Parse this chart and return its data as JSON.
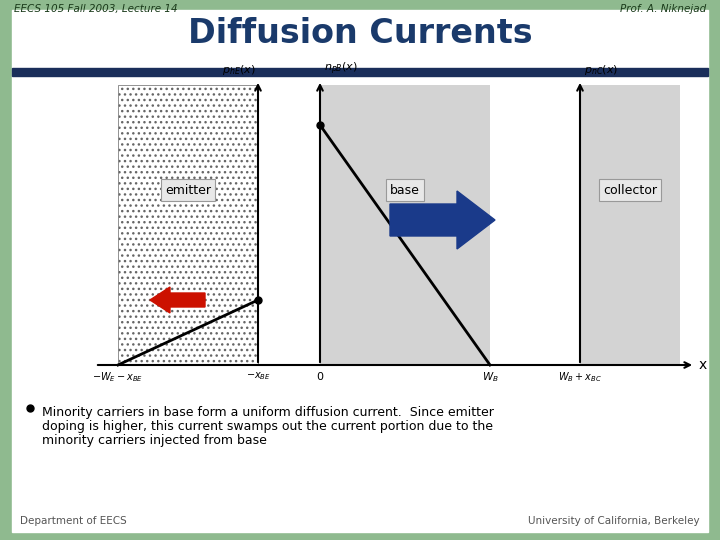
{
  "title": "Diffusion Currents",
  "header_left": "EECS 105 Fall 2003, Lecture 14",
  "header_right": "Prof. A. Niknejad",
  "footer_left": "Department of EECS",
  "footer_right": "University of California, Berkeley",
  "bg_color": "#8fba8f",
  "slide_bg": "#ffffff",
  "title_color": "#1a3a6b",
  "header_color": "#2a4a2a",
  "footer_color": "#555555",
  "blue_arrow_color": "#1a3a8a",
  "red_arrow_color": "#cc1100",
  "line_color": "#000000",
  "hatch_color": "#555555",
  "base_fill": "#d3d3d3",
  "collector_fill": "#d3d3d3",
  "label_box_face": "#e8e8e8",
  "label_box_edge": "#999999",
  "navy_bar_color": "#1a2e5a",
  "bullet_line1": "Minority carriers in base form a uniform diffusion current.  Since emitter",
  "bullet_line2": "doping is higher, this current swamps out the current portion due to the",
  "bullet_line3": "minority carriers injected from base"
}
